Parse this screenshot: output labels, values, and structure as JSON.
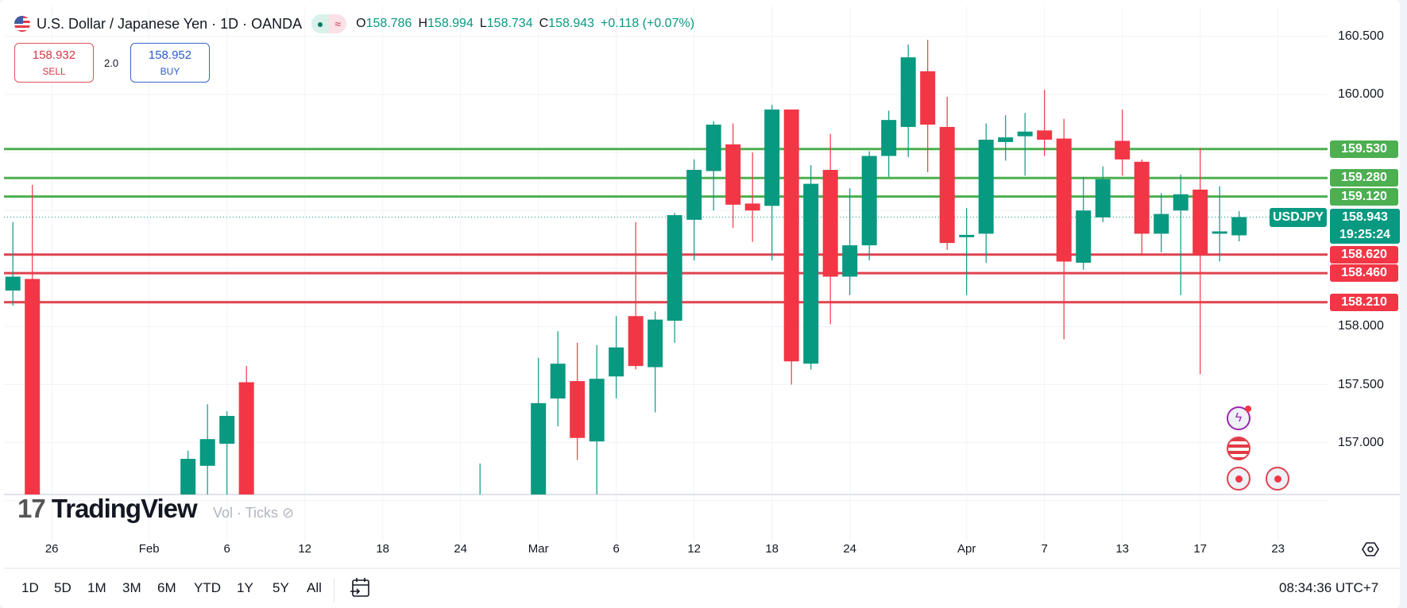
{
  "header": {
    "title": "U.S. Dollar / Japanese Yen · 1D · OANDA",
    "status_icons": [
      "market-open-dot-icon",
      "delayed-data-icon"
    ],
    "ohlc": {
      "o_label": "O",
      "o": "158.786",
      "h_label": "H",
      "h": "158.994",
      "l_label": "L",
      "l": "158.734",
      "c_label": "C",
      "c": "158.943",
      "change": "+0.118 (+0.07%)"
    }
  },
  "trade": {
    "sell_price": "158.932",
    "sell_label": "SELL",
    "spread": "2.0",
    "buy_price": "158.952",
    "buy_label": "BUY"
  },
  "colors": {
    "up": "#089981",
    "down": "#f23645",
    "support_line": "#4caf50",
    "resistance_line": "#e0424f",
    "buy": "#2962ff"
  },
  "chart_data": {
    "type": "candlestick",
    "symbol": "USDJPY",
    "ylim": [
      156.53,
      160.73
    ],
    "y_ticks": [
      "160.500",
      "160.000",
      "158.000",
      "157.500",
      "157.000"
    ],
    "x_ticks": [
      {
        "date": "Jan 26",
        "label": "26"
      },
      {
        "date": "Feb 2",
        "label": "Feb"
      },
      {
        "date": "Feb 6",
        "label": "6"
      },
      {
        "date": "Feb 12",
        "label": "12"
      },
      {
        "date": "Feb 18",
        "label": "18"
      },
      {
        "date": "Feb 24",
        "label": "24"
      },
      {
        "date": "Mar 2",
        "label": "Mar"
      },
      {
        "date": "Mar 6",
        "label": "6"
      },
      {
        "date": "Mar 12",
        "label": "12"
      },
      {
        "date": "Mar 18",
        "label": "18"
      },
      {
        "date": "Mar 24",
        "label": "24"
      },
      {
        "date": "Apr 1",
        "label": "Apr"
      },
      {
        "date": "Apr 7",
        "label": "7"
      },
      {
        "date": "Apr 13",
        "label": "13"
      },
      {
        "date": "Apr 17",
        "label": "17"
      },
      {
        "date": "Apr 23",
        "label": "23"
      }
    ],
    "candles": [
      {
        "d": "Jan 22",
        "o": 158.31,
        "h": 158.9,
        "l": 158.18,
        "c": 158.43
      },
      {
        "d": "Jan 23",
        "o": 158.41,
        "h": 159.22,
        "l": 155.6,
        "c": 155.7
      },
      {
        "d": "Feb 4",
        "o": 156.3,
        "h": 156.93,
        "l": 156.2,
        "c": 156.86
      },
      {
        "d": "Feb 5",
        "o": 156.8,
        "h": 157.33,
        "l": 156.4,
        "c": 157.03
      },
      {
        "d": "Feb 6",
        "o": 156.99,
        "h": 157.27,
        "l": 156.4,
        "c": 157.23
      },
      {
        "d": "Feb 9",
        "o": 157.52,
        "h": 157.66,
        "l": 156.2,
        "c": 156.3
      },
      {
        "d": "Feb 25",
        "o": 156.2,
        "h": 156.82,
        "l": 156.0,
        "c": 156.3
      },
      {
        "d": "Mar 2",
        "o": 156.4,
        "h": 157.73,
        "l": 156.3,
        "c": 157.34
      },
      {
        "d": "Mar 3",
        "o": 157.38,
        "h": 157.96,
        "l": 157.14,
        "c": 157.68
      },
      {
        "d": "Mar 4",
        "o": 157.53,
        "h": 157.86,
        "l": 156.85,
        "c": 157.04
      },
      {
        "d": "Mar 5",
        "o": 157.01,
        "h": 157.84,
        "l": 156.5,
        "c": 157.55
      },
      {
        "d": "Mar 6",
        "o": 157.57,
        "h": 158.09,
        "l": 157.38,
        "c": 157.82
      },
      {
        "d": "Mar 9",
        "o": 158.09,
        "h": 158.9,
        "l": 157.63,
        "c": 157.66
      },
      {
        "d": "Mar 10",
        "o": 157.65,
        "h": 158.13,
        "l": 157.26,
        "c": 158.06
      },
      {
        "d": "Mar 11",
        "o": 158.05,
        "h": 158.98,
        "l": 157.86,
        "c": 158.96
      },
      {
        "d": "Mar 12",
        "o": 158.92,
        "h": 159.44,
        "l": 158.57,
        "c": 159.35
      },
      {
        "d": "Mar 13",
        "o": 159.34,
        "h": 159.77,
        "l": 159.0,
        "c": 159.74
      },
      {
        "d": "Mar 16",
        "o": 159.57,
        "h": 159.75,
        "l": 158.85,
        "c": 159.05
      },
      {
        "d": "Mar 17",
        "o": 159.06,
        "h": 159.5,
        "l": 158.73,
        "c": 159.0
      },
      {
        "d": "Mar 18",
        "o": 159.04,
        "h": 159.91,
        "l": 158.57,
        "c": 159.87
      },
      {
        "d": "Mar 19",
        "o": 159.87,
        "h": 159.87,
        "l": 157.5,
        "c": 157.7
      },
      {
        "d": "Mar 20",
        "o": 157.68,
        "h": 159.39,
        "l": 157.63,
        "c": 159.23
      },
      {
        "d": "Mar 23",
        "o": 159.35,
        "h": 159.66,
        "l": 158.02,
        "c": 158.43
      },
      {
        "d": "Mar 24",
        "o": 158.43,
        "h": 159.19,
        "l": 158.27,
        "c": 158.7
      },
      {
        "d": "Mar 25",
        "o": 158.7,
        "h": 159.51,
        "l": 158.57,
        "c": 159.47
      },
      {
        "d": "Mar 26",
        "o": 159.47,
        "h": 159.86,
        "l": 159.29,
        "c": 159.78
      },
      {
        "d": "Mar 27",
        "o": 159.72,
        "h": 160.43,
        "l": 159.46,
        "c": 160.32
      },
      {
        "d": "Mar 30",
        "o": 160.2,
        "h": 160.47,
        "l": 159.33,
        "c": 159.74
      },
      {
        "d": "Mar 31",
        "o": 159.72,
        "h": 159.98,
        "l": 158.66,
        "c": 158.72
      },
      {
        "d": "Apr 1",
        "o": 158.77,
        "h": 159.02,
        "l": 158.27,
        "c": 158.79
      },
      {
        "d": "Apr 2",
        "o": 158.8,
        "h": 159.75,
        "l": 158.55,
        "c": 159.61
      },
      {
        "d": "Apr 3",
        "o": 159.59,
        "h": 159.82,
        "l": 159.43,
        "c": 159.63
      },
      {
        "d": "Apr 6",
        "o": 159.64,
        "h": 159.84,
        "l": 159.3,
        "c": 159.68
      },
      {
        "d": "Apr 7",
        "o": 159.69,
        "h": 160.04,
        "l": 159.47,
        "c": 159.61
      },
      {
        "d": "Apr 8",
        "o": 159.62,
        "h": 159.79,
        "l": 157.89,
        "c": 158.56
      },
      {
        "d": "Apr 9",
        "o": 158.55,
        "h": 159.29,
        "l": 158.49,
        "c": 159.0
      },
      {
        "d": "Apr 10",
        "o": 158.94,
        "h": 159.38,
        "l": 158.9,
        "c": 159.27
      },
      {
        "d": "Apr 13",
        "o": 159.6,
        "h": 159.87,
        "l": 159.3,
        "c": 159.44
      },
      {
        "d": "Apr 14",
        "o": 159.42,
        "h": 159.44,
        "l": 158.61,
        "c": 158.8
      },
      {
        "d": "Apr 15",
        "o": 158.8,
        "h": 159.15,
        "l": 158.64,
        "c": 158.97
      },
      {
        "d": "Apr 16",
        "o": 159.0,
        "h": 159.31,
        "l": 158.27,
        "c": 159.14
      },
      {
        "d": "Apr 17",
        "o": 159.18,
        "h": 159.54,
        "l": 157.59,
        "c": 158.62
      },
      {
        "d": "Apr 20",
        "o": 158.8,
        "h": 159.21,
        "l": 158.56,
        "c": 158.82
      },
      {
        "d": "Apr 21",
        "o": 158.786,
        "h": 158.994,
        "l": 158.734,
        "c": 158.943
      }
    ],
    "horizontal_lines": [
      {
        "price": 159.53,
        "label": "159.530",
        "kind": "support"
      },
      {
        "price": 159.28,
        "label": "159.280",
        "kind": "support"
      },
      {
        "price": 159.12,
        "label": "159.120",
        "kind": "support"
      },
      {
        "price": 158.62,
        "label": "158.620",
        "kind": "resistance"
      },
      {
        "price": 158.46,
        "label": "158.460",
        "kind": "resistance"
      },
      {
        "price": 158.21,
        "label": "158.210",
        "kind": "resistance"
      }
    ],
    "last_price": {
      "price": 158.943,
      "label": "158.943",
      "countdown": "19:25:24",
      "symbol": "USDJPY"
    }
  },
  "watermark": {
    "brand": "TradingView",
    "legend": "Vol · Ticks"
  },
  "events": [
    "economic-event-icon",
    "us-flag-event-icon",
    "dividend-event-icon",
    "dividend-event-icon"
  ],
  "toolbar": {
    "ranges": [
      "1D",
      "5D",
      "1M",
      "3M",
      "6M",
      "YTD",
      "1Y",
      "5Y",
      "All"
    ],
    "clock": "08:34:36 UTC+7"
  }
}
